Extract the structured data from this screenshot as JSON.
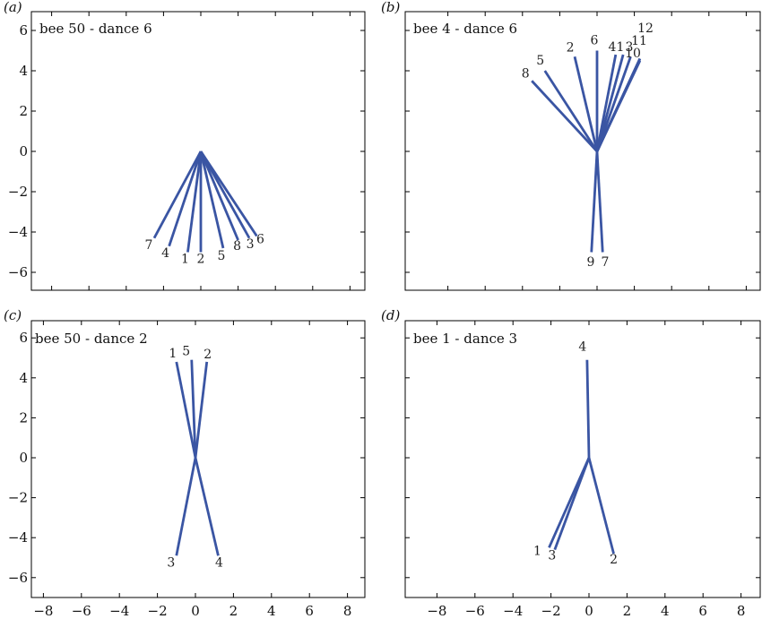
{
  "chart_data": [
    {
      "type": "line",
      "panel": "(a)",
      "title": "bee 50 - dance 6",
      "xlim": [
        -9,
        9
      ],
      "ylim": [
        -7,
        7
      ],
      "yticks": [
        "6",
        "4",
        "2",
        "0",
        "−2",
        "−4",
        "−6"
      ],
      "xticks": [],
      "origin": [
        0,
        0
      ],
      "series": [
        {
          "label": "7",
          "x": -2.5,
          "y": -4.3
        },
        {
          "label": "4",
          "x": -1.7,
          "y": -4.7
        },
        {
          "label": "1",
          "x": -0.7,
          "y": -5.0
        },
        {
          "label": "2",
          "x": 0.0,
          "y": -5.0
        },
        {
          "label": "5",
          "x": 1.2,
          "y": -4.8
        },
        {
          "label": "8",
          "x": 2.0,
          "y": -4.4
        },
        {
          "label": "3",
          "x": 2.6,
          "y": -4.3
        },
        {
          "label": "6",
          "x": 3.0,
          "y": -4.2
        }
      ]
    },
    {
      "type": "line",
      "panel": "(b)",
      "title": "bee 4 - dance 6",
      "xlim": [
        -9,
        9
      ],
      "ylim": [
        -7,
        7
      ],
      "yticks": [],
      "xticks": [],
      "origin": [
        0,
        0
      ],
      "series": [
        {
          "label": "8",
          "x": -3.5,
          "y": 3.5
        },
        {
          "label": "5",
          "x": -2.8,
          "y": 4.0
        },
        {
          "label": "2",
          "x": -1.2,
          "y": 4.7
        },
        {
          "label": "6",
          "x": 0.0,
          "y": 5.0
        },
        {
          "label": "4",
          "x": 1.0,
          "y": 4.8
        },
        {
          "label": "1",
          "x": 1.4,
          "y": 4.8
        },
        {
          "label": "3",
          "x": 1.8,
          "y": 4.7
        },
        {
          "label": "10",
          "x": 2.3,
          "y": 4.5
        },
        {
          "label": "11",
          "x": 2.3,
          "y": 4.6
        },
        {
          "label": "12",
          "x": 2.3,
          "y": 4.6
        },
        {
          "label": "9",
          "x": -0.3,
          "y": -5.0
        },
        {
          "label": "7",
          "x": 0.3,
          "y": -5.0
        }
      ]
    },
    {
      "type": "line",
      "panel": "(c)",
      "title": "bee 50 - dance 2",
      "xlim": [
        -9,
        9
      ],
      "ylim": [
        -7,
        7
      ],
      "yticks": [
        "6",
        "4",
        "2",
        "0",
        "−2",
        "−4",
        "−6"
      ],
      "xticks": [
        "−8",
        "−6",
        "−4",
        "−2",
        "0",
        "2",
        "4",
        "6",
        "8"
      ],
      "origin": [
        0,
        0
      ],
      "series": [
        {
          "label": "1",
          "x": -1.0,
          "y": 4.8
        },
        {
          "label": "5",
          "x": -0.2,
          "y": 4.9
        },
        {
          "label": "2",
          "x": 0.6,
          "y": 4.8
        },
        {
          "label": "3",
          "x": -1.0,
          "y": -4.9
        },
        {
          "label": "4",
          "x": 1.2,
          "y": -4.9
        }
      ]
    },
    {
      "type": "line",
      "panel": "(d)",
      "title": "bee 1 - dance 3",
      "xlim": [
        -9,
        9
      ],
      "ylim": [
        -7,
        7
      ],
      "yticks": [],
      "xticks": [
        "−8",
        "−6",
        "−4",
        "−2",
        "0",
        "2",
        "4",
        "6",
        "8"
      ],
      "origin": [
        0,
        0
      ],
      "series": [
        {
          "label": "4",
          "x": -0.1,
          "y": 4.9
        },
        {
          "label": "1",
          "x": -2.1,
          "y": -4.5
        },
        {
          "label": "3",
          "x": -1.8,
          "y": -4.6
        },
        {
          "label": "2",
          "x": 1.3,
          "y": -4.8
        }
      ]
    }
  ]
}
